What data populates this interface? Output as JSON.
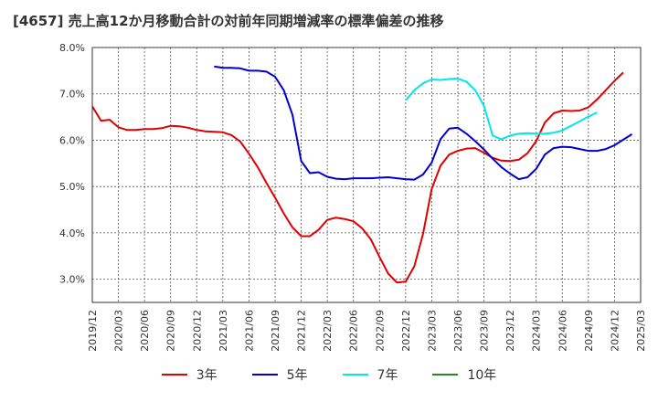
{
  "chart_data": {
    "type": "line",
    "title": "[4657]  売上高12か月移動合計の対前年同期増減率の標準偏差の推移",
    "x_ticks": [
      "2019/12",
      "2020/03",
      "2020/06",
      "2020/09",
      "2020/12",
      "2021/03",
      "2021/06",
      "2021/09",
      "2021/12",
      "2022/03",
      "2022/06",
      "2022/09",
      "2022/12",
      "2023/03",
      "2023/06",
      "2023/09",
      "2023/12",
      "2024/03",
      "2024/06",
      "2024/09",
      "2024/12",
      "2025/03"
    ],
    "y_ticks": [
      "3.0%",
      "4.0%",
      "5.0%",
      "6.0%",
      "7.0%",
      "8.0%"
    ],
    "ylim": [
      2.5,
      8.0
    ],
    "grid": true,
    "legend_position": "bottom",
    "series": [
      {
        "name": "3年",
        "color": "#e00000",
        "start": "2019/12",
        "values": [
          6.73,
          6.42,
          6.44,
          6.28,
          6.22,
          6.22,
          6.24,
          6.24,
          6.26,
          6.31,
          6.3,
          6.27,
          6.22,
          6.19,
          6.18,
          6.17,
          6.11,
          5.97,
          5.71,
          5.42,
          5.08,
          4.76,
          4.42,
          4.12,
          3.93,
          3.93,
          4.07,
          4.28,
          4.33,
          4.3,
          4.25,
          4.1,
          3.86,
          3.48,
          3.12,
          2.93,
          2.95,
          3.28,
          3.98,
          4.95,
          5.45,
          5.69,
          5.77,
          5.82,
          5.83,
          5.73,
          5.62,
          5.56,
          5.55,
          5.58,
          5.72,
          5.98,
          6.38,
          6.58,
          6.64,
          6.63,
          6.64,
          6.71,
          6.88,
          7.08,
          7.28,
          7.46
        ]
      },
      {
        "name": "5年",
        "color": "#0000cc",
        "start": "2021/02",
        "values": [
          7.59,
          7.56,
          7.56,
          7.55,
          7.5,
          7.5,
          7.48,
          7.37,
          7.08,
          6.55,
          5.55,
          5.29,
          5.31,
          5.21,
          5.17,
          5.16,
          5.18,
          5.18,
          5.18,
          5.19,
          5.2,
          5.18,
          5.16,
          5.15,
          5.26,
          5.52,
          6.02,
          6.25,
          6.27,
          6.14,
          5.98,
          5.8,
          5.6,
          5.42,
          5.28,
          5.16,
          5.2,
          5.38,
          5.69,
          5.83,
          5.86,
          5.85,
          5.81,
          5.77,
          5.77,
          5.81,
          5.89,
          6.01,
          6.13
        ]
      },
      {
        "name": "7年",
        "color": "#00e5ee",
        "start": "2022/12",
        "values": [
          6.86,
          7.08,
          7.23,
          7.31,
          7.3,
          7.32,
          7.33,
          7.26,
          7.08,
          6.74,
          6.1,
          6.02,
          6.1,
          6.14,
          6.15,
          6.14,
          6.14,
          6.16,
          6.21,
          6.31,
          6.41,
          6.51,
          6.6
        ]
      },
      {
        "name": "10年",
        "color": "#228b22",
        "start": "",
        "values": []
      }
    ]
  }
}
